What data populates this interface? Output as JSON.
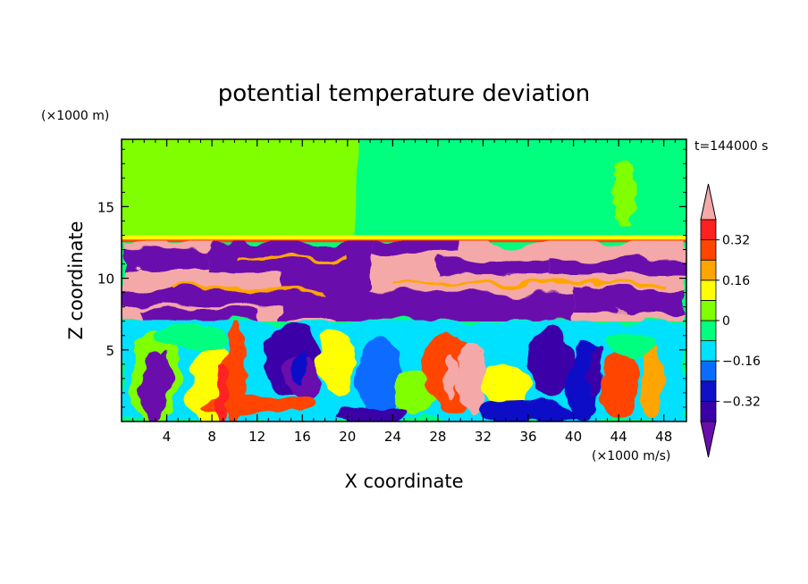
{
  "chart_data": {
    "type": "heatmap",
    "title": "potential temperature deviation",
    "xlabel": "X coordinate",
    "ylabel": "Z coordinate",
    "x_unit": "(×1000 m/s)",
    "y_unit": "(×1000 m)",
    "time_label": "t=144000 s",
    "xlim": [
      0,
      50
    ],
    "ylim": [
      0,
      19.7
    ],
    "x_ticks": [
      4,
      8,
      12,
      16,
      20,
      24,
      28,
      32,
      36,
      40,
      44,
      48
    ],
    "y_ticks": [
      5,
      10,
      15
    ],
    "x_tick_labels": [
      "4",
      "8",
      "12",
      "16",
      "20",
      "24",
      "28",
      "32",
      "36",
      "40",
      "44",
      "48"
    ],
    "y_tick_labels": [
      "5",
      "10",
      "15"
    ],
    "colorbar": {
      "levels": [
        -0.4,
        -0.32,
        -0.24,
        -0.16,
        -0.08,
        0,
        0.08,
        0.16,
        0.24,
        0.32,
        0.4
      ],
      "tick_values": [
        -0.32,
        -0.16,
        0,
        0.16,
        0.32
      ],
      "tick_labels": [
        "−0.32",
        "−0.16",
        "0",
        "0.16",
        "0.32"
      ],
      "colors": [
        "#6a0dad",
        "#3a00a8",
        "#1010c8",
        "#0a6cff",
        "#00e0ff",
        "#00ff7f",
        "#7fff00",
        "#ffff00",
        "#ffa500",
        "#ff4500",
        "#ff2020",
        "#f5a8a8"
      ],
      "extend": "both"
    },
    "regions": [
      {
        "name": "upper-left plateau",
        "x": [
          0,
          21
        ],
        "z": [
          13,
          19.7
        ],
        "value": 0.04
      },
      {
        "name": "upper-right plateau",
        "x": [
          21,
          50
        ],
        "z": [
          13,
          19.7
        ],
        "value": -0.04
      },
      {
        "name": "tropopause band",
        "x": [
          0,
          50
        ],
        "z": [
          12.6,
          13
        ],
        "value": 0.2
      },
      {
        "name": "upper layer",
        "x": [
          0,
          50
        ],
        "z": [
          7,
          12.6
        ],
        "value": "alternating ≥0.4 and ≤-0.4"
      },
      {
        "name": "lower turbulent layer",
        "x": [
          0,
          50
        ],
        "z": [
          0,
          7
        ],
        "value": "mixed −0.4 to 0.4"
      }
    ]
  }
}
